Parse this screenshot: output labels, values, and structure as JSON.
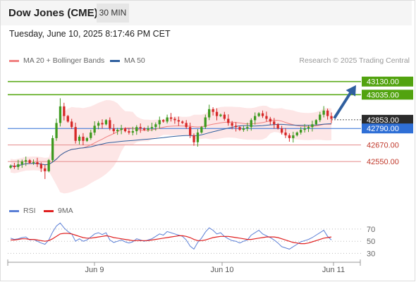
{
  "header": {
    "title": "Dow Jones (CME)",
    "timeframe": "30 MIN",
    "datetime": "Tuesday, June 10, 2025 8:17:46 PM CET"
  },
  "legend": {
    "bollinger": {
      "label": "MA 20 + Bollinger Bands",
      "color": "#f08080"
    },
    "ma50": {
      "label": "MA 50",
      "color": "#2e5f9e"
    }
  },
  "credit": "Research © 2025 Trading Central",
  "rsi_legend": {
    "rsi": {
      "label": "RSI",
      "color": "#5b7fd6"
    },
    "ma9": {
      "label": "9MA",
      "color": "#e02020"
    }
  },
  "chart_data": {
    "type": "candlestick",
    "ylim": [
      42300,
      43200
    ],
    "x_tick_labels": [
      "Jun 9",
      "Jun 10",
      "Jun 11"
    ],
    "levels": [
      {
        "value": 43130,
        "label": "43130.00",
        "style": "resistance"
      },
      {
        "value": 43035,
        "label": "43035.00",
        "style": "resistance"
      },
      {
        "value": 42853,
        "label": "42853.00",
        "style": "last-price"
      },
      {
        "value": 42790,
        "label": "42790.00",
        "style": "pivot"
      },
      {
        "value": 42670,
        "label": "42670.00",
        "style": "support"
      },
      {
        "value": 42550,
        "label": "42550.00",
        "style": "support"
      }
    ],
    "close": [
      42520,
      42510,
      42530,
      42550,
      42560,
      42540,
      42545,
      42530,
      42500,
      42480,
      42560,
      42720,
      42830,
      42950,
      42880,
      42840,
      42800,
      42700,
      42730,
      42700,
      42720,
      42760,
      42810,
      42830,
      42820,
      42850,
      42790,
      42770,
      42780,
      42790,
      42770,
      42760,
      42770,
      42800,
      42790,
      42780,
      42790,
      42800,
      42820,
      42850,
      42840,
      42870,
      42860,
      42850,
      42840,
      42830,
      42800,
      42740,
      42690,
      42760,
      42800,
      42870,
      42930,
      42910,
      42880,
      42890,
      42860,
      42830,
      42810,
      42800,
      42780,
      42790,
      42800,
      42850,
      42880,
      42900,
      42880,
      42860,
      42840,
      42820,
      42790,
      42760,
      42740,
      42720,
      42740,
      42760,
      42780,
      42790,
      42800,
      42820,
      42850,
      42890,
      42920,
      42880,
      42860
    ],
    "rsi_ylim": [
      20,
      85
    ],
    "rsi_ticks": [
      70,
      50,
      30
    ],
    "rsi": [
      55,
      53,
      54,
      56,
      57,
      52,
      53,
      50,
      47,
      45,
      52,
      65,
      75,
      80,
      72,
      66,
      62,
      50,
      54,
      50,
      52,
      57,
      62,
      64,
      61,
      64,
      52,
      48,
      50,
      52,
      49,
      47,
      49,
      54,
      52,
      50,
      52,
      54,
      58,
      62,
      60,
      66,
      64,
      62,
      60,
      58,
      52,
      42,
      37,
      48,
      55,
      65,
      72,
      68,
      62,
      64,
      58,
      54,
      51,
      50,
      47,
      50,
      52,
      60,
      64,
      68,
      62,
      59,
      56,
      52,
      47,
      41,
      39,
      37,
      41,
      45,
      49,
      51,
      53,
      56,
      60,
      64,
      68,
      58,
      52
    ],
    "rsi_ma9": [
      52,
      52,
      53,
      54,
      54,
      53,
      53,
      52,
      51,
      50,
      51,
      54,
      58,
      62,
      63,
      63,
      62,
      60,
      58,
      56,
      55,
      55,
      56,
      57,
      58,
      59,
      58,
      56,
      55,
      54,
      53,
      52,
      51,
      51,
      51,
      51,
      51,
      52,
      53,
      54,
      55,
      56,
      57,
      58,
      59,
      59,
      58,
      56,
      53,
      51,
      51,
      52,
      54,
      56,
      57,
      58,
      58,
      58,
      57,
      56,
      55,
      54,
      53,
      53,
      54,
      55,
      56,
      57,
      57,
      57,
      56,
      54,
      52,
      50,
      48,
      47,
      46,
      46,
      47,
      49,
      51,
      53,
      55,
      56,
      57
    ]
  }
}
